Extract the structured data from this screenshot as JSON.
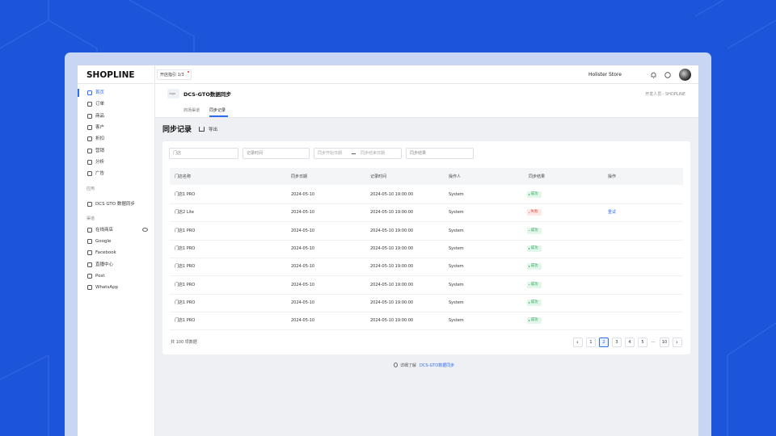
{
  "topbar": {
    "brand": "SHOPLINE",
    "guide": "开店指引 1/3",
    "store": "Holister Store"
  },
  "sidebar": {
    "items": [
      "首页",
      "订单",
      "商品",
      "客户",
      "折扣",
      "营销",
      "分析",
      "广告"
    ],
    "apps_label": "应用",
    "apps": [
      "DCS GTO 数据同步"
    ],
    "channels_label": "渠道",
    "channels": [
      "在线商店",
      "Google",
      "Facebook",
      "直播中心",
      "Post",
      "WhatsApp"
    ]
  },
  "header": {
    "logo": "logo",
    "title": "DCS-GTO数据同步",
    "breadcrumb": "开发人员 · SHOPLINE",
    "tabs": [
      "商场渠道",
      "同步记录"
    ],
    "active_tab": "同步记录"
  },
  "page": {
    "title": "同步记录",
    "export": "导出"
  },
  "filters": {
    "store": "门店",
    "record_time": "记录时间",
    "start_date": "同步开始日期",
    "end_date": "同步结束日期",
    "result": "同步结果"
  },
  "table": {
    "columns": [
      "门店名称",
      "同步日期",
      "记录时间",
      "操作人",
      "同步结果",
      "操作"
    ],
    "rows": [
      {
        "store": "门店1 PRO",
        "date": "2024-05-10",
        "time": "2024-05-10 19:00:00",
        "operator": "System",
        "result": "成功",
        "result_tone": "success"
      },
      {
        "store": "门店2 Lite",
        "date": "2024-05-10",
        "time": "2024-05-10 19:00:00",
        "operator": "System",
        "result": "失败",
        "result_tone": "danger",
        "action": "重试"
      },
      {
        "store": "门店1 PRO",
        "date": "2024-05-10",
        "time": "2024-05-10 19:00:00",
        "operator": "System",
        "result": "成功",
        "result_tone": "success"
      },
      {
        "store": "门店1 PRO",
        "date": "2024-05-10",
        "time": "2024-05-10 19:00:00",
        "operator": "System",
        "result": "成功",
        "result_tone": "success"
      },
      {
        "store": "门店1 PRO",
        "date": "2024-05-10",
        "time": "2024-05-10 19:00:00",
        "operator": "System",
        "result": "成功",
        "result_tone": "success"
      },
      {
        "store": "门店1 PRO",
        "date": "2024-05-10",
        "time": "2024-05-10 19:00:00",
        "operator": "System",
        "result": "成功",
        "result_tone": "success"
      },
      {
        "store": "门店1 PRO",
        "date": "2024-05-10",
        "time": "2024-05-10 19:00:00",
        "operator": "System",
        "result": "成功",
        "result_tone": "success"
      },
      {
        "store": "门店1 PRO",
        "date": "2024-05-10",
        "time": "2024-05-10 19:00:00",
        "operator": "System",
        "result": "成功",
        "result_tone": "success"
      }
    ]
  },
  "footer": {
    "total": "共 100 项数据",
    "pages": [
      "1",
      "2",
      "3",
      "4",
      "5",
      "···",
      "10"
    ],
    "current_page": "2"
  },
  "help": {
    "text": "详细了解",
    "link": "DCS-GTO数据同步"
  }
}
